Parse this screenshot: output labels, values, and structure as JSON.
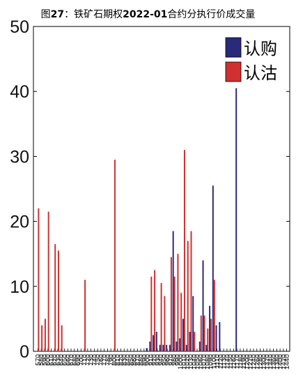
{
  "chart_data": {
    "type": "bar",
    "title": {
      "prefix": "图",
      "number": "27",
      "sep": "：铁矿石期权",
      "contract": "2022-01",
      "suffix": "合约分执行价成交量"
    },
    "xlabel": "",
    "ylabel": "",
    "ylim": [
      0,
      50
    ],
    "yticks": [
      0,
      10,
      20,
      30,
      40,
      50
    ],
    "grid": false,
    "legend_position": "top-right",
    "categories": [
      "570",
      "580",
      "590",
      "600",
      "610",
      "620",
      "630",
      "640",
      "650",
      "660",
      "670",
      "680",
      "690",
      "700",
      "710",
      "720",
      "730",
      "740",
      "750",
      "760",
      "770",
      "780",
      "790",
      "800",
      "810",
      "820",
      "830",
      "840",
      "850",
      "860",
      "870",
      "880",
      "890",
      "900",
      "910",
      "920",
      "930",
      "940",
      "950",
      "960",
      "970",
      "980",
      "990",
      "1000",
      "1010",
      "1020",
      "1030",
      "1040",
      "1050",
      "1060",
      "1070",
      "1080",
      "1090",
      "1100",
      "1110",
      "1120",
      "1130",
      "1140",
      "1150",
      "1160",
      "1170",
      "1180",
      "1190",
      "1200",
      "1220",
      "1240",
      "1260",
      "1280",
      "1300",
      "1320",
      "1340",
      "1360",
      "1380",
      "1400",
      "1420",
      "1440"
    ],
    "series": [
      {
        "name": "认购",
        "color": "#2a2a7a",
        "values": [
          0,
          0,
          0,
          0,
          0,
          0,
          0,
          0,
          0,
          0,
          0,
          0,
          0,
          0,
          0,
          0,
          0,
          0,
          0,
          0,
          0,
          0,
          0,
          0,
          0,
          0,
          0,
          0,
          0,
          0,
          0,
          0,
          0,
          0.5,
          1.5,
          2.5,
          3,
          1,
          1,
          1,
          1,
          18.5,
          1.5,
          2,
          5,
          1,
          3,
          8.5,
          0,
          1.5,
          14,
          1,
          7,
          25.5,
          4,
          4.5,
          0,
          0,
          0,
          0,
          40.5,
          0,
          0,
          0,
          0,
          0,
          0,
          0,
          0,
          0,
          0,
          0,
          0,
          0,
          0,
          0
        ]
      },
      {
        "name": "认沽",
        "color": "#d03030",
        "values": [
          22,
          4,
          5,
          21.5,
          0,
          16.5,
          15.5,
          4,
          0,
          0,
          0,
          0,
          0,
          0,
          11,
          0,
          0,
          0,
          0,
          0,
          0,
          0,
          0,
          29.5,
          0,
          0,
          0,
          0,
          0,
          0,
          0,
          0,
          0,
          0,
          11.5,
          12.5,
          0,
          10.5,
          8.5,
          0,
          14.5,
          11.5,
          15,
          9,
          31,
          17,
          18.5,
          3,
          0,
          5.5,
          5.5,
          3.5,
          5,
          11,
          0,
          0,
          0,
          0,
          0,
          0,
          0,
          0,
          0,
          0,
          0,
          0,
          0,
          0,
          0,
          0,
          0,
          0,
          0,
          0,
          0,
          0
        ]
      }
    ]
  }
}
